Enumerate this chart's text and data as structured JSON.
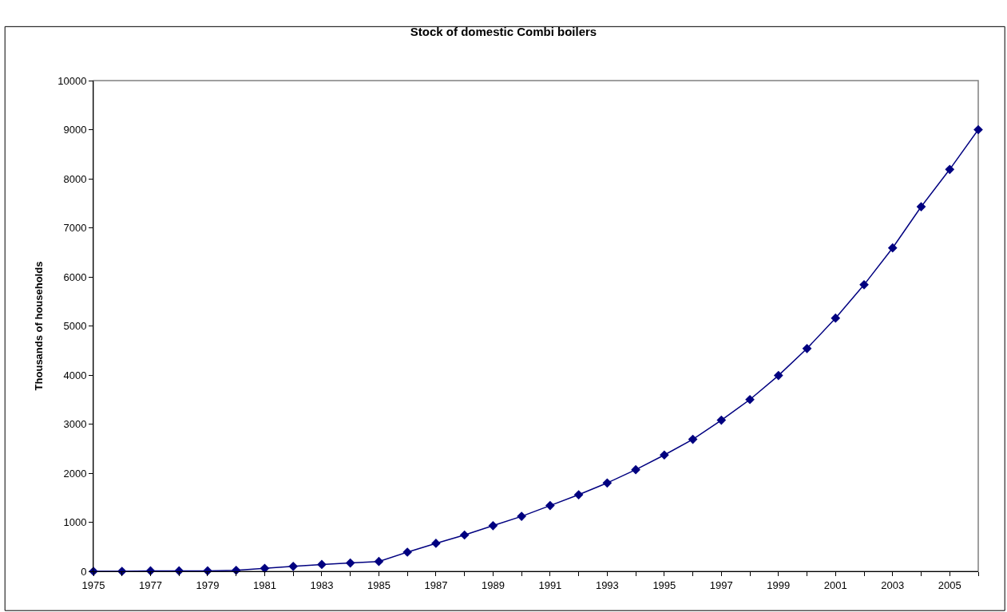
{
  "chart_data": {
    "type": "line",
    "title": "Stock of domestic Combi boilers",
    "ylabel": "Thousands of households",
    "x": [
      1975,
      1976,
      1977,
      1978,
      1979,
      1980,
      1981,
      1982,
      1983,
      1984,
      1985,
      1986,
      1987,
      1988,
      1989,
      1990,
      1991,
      1992,
      1993,
      1994,
      1995,
      1996,
      1997,
      1998,
      1999,
      2000,
      2001,
      2002,
      2003,
      2004,
      2005,
      2006
    ],
    "series": [
      {
        "color": "#000080",
        "values": [
          0,
          0,
          10,
          10,
          10,
          20,
          60,
          100,
          140,
          170,
          200,
          390,
          570,
          740,
          930,
          1120,
          1340,
          1560,
          1800,
          2070,
          2370,
          2690,
          3080,
          3500,
          3990,
          4540,
          5160,
          5840,
          6590,
          7430,
          8190,
          9000
        ]
      }
    ],
    "xlim": [
      1975,
      2006
    ],
    "xticks": [
      1975,
      {
        "value": 1976,
        "label": null
      },
      1977,
      {
        "value": 1978,
        "label": null
      },
      1979,
      {
        "value": 1980,
        "label": null
      },
      1981,
      {
        "value": 1982,
        "label": null
      },
      1983,
      {
        "value": 1984,
        "label": null
      },
      1985,
      {
        "value": 1986,
        "label": null
      },
      1987,
      {
        "value": 1988,
        "label": null
      },
      1989,
      {
        "value": 1990,
        "label": null
      },
      1991,
      {
        "value": 1992,
        "label": null
      },
      1993,
      {
        "value": 1994,
        "label": null
      },
      1995,
      {
        "value": 1996,
        "label": null
      },
      1997,
      {
        "value": 1998,
        "label": null
      },
      1999,
      {
        "value": 2000,
        "label": null
      },
      2001,
      {
        "value": 2002,
        "label": null
      },
      2003,
      {
        "value": 2004,
        "label": null
      },
      2005,
      {
        "value": 2006,
        "label": null
      }
    ],
    "ylim": [
      0,
      10000
    ],
    "yticks": [
      0,
      1000,
      2000,
      3000,
      4000,
      5000,
      6000,
      7000,
      8000,
      9000,
      10000
    ],
    "grid": false,
    "marker": "diamond",
    "line_style": "solid"
  }
}
